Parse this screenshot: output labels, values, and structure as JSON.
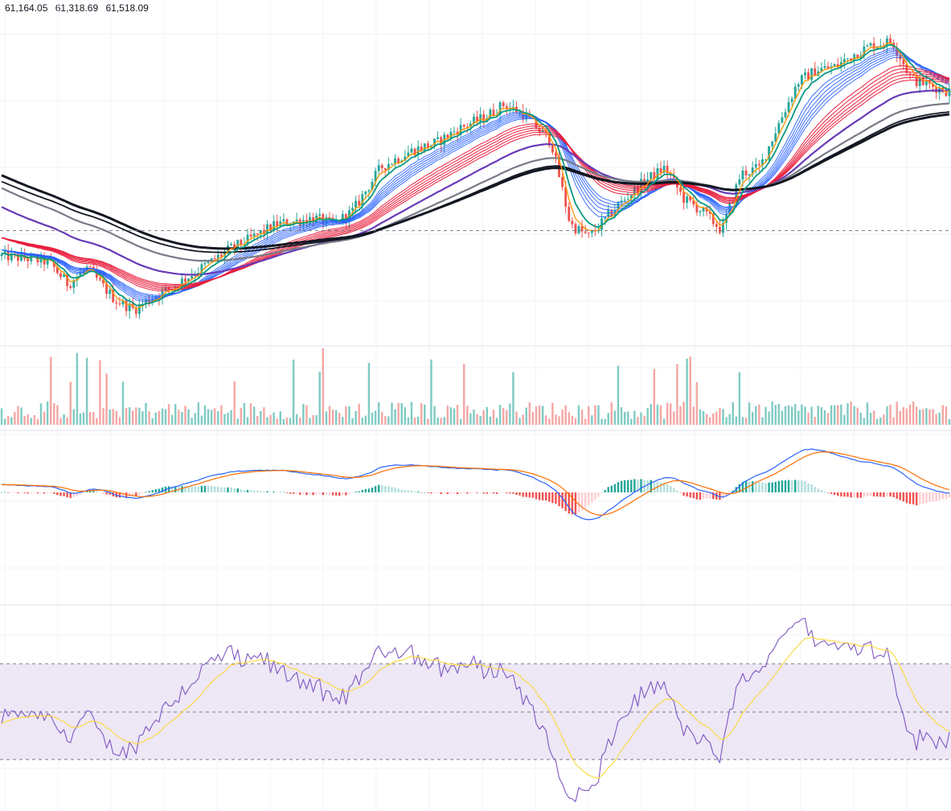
{
  "header": {
    "readout": [
      "61,164.05",
      "61,318.69",
      "61,518.09"
    ]
  },
  "colors": {
    "up": "#26a69a",
    "down": "#ef5350",
    "volume_up": "#80cbc4",
    "volume_down": "#f4a7a5",
    "ma_fast": "#2962ff",
    "ma_slow": "#e91e3c",
    "ma_200": "#673ab7",
    "ma_300": "#787b86",
    "ma_400": "#131722",
    "ema_fast1": "#ff9800",
    "ema_fast2": "#089981",
    "macd_line": "#2962ff",
    "signal_line": "#ff6d00",
    "rsi_line": "#7e57c2",
    "rsi_ma": "#fdd835",
    "rsi_band": "#ede7f6",
    "grid": "#f0f3fa"
  },
  "chart_data": [
    {
      "type": "candlestick",
      "title": "",
      "reference_line": "dashed",
      "price_path": [
        [
          0,
          0.1
        ],
        [
          0.03,
          0.05
        ],
        [
          0.05,
          0.0
        ],
        [
          0.07,
          -0.35
        ],
        [
          0.09,
          -0.1
        ],
        [
          0.12,
          -0.6
        ],
        [
          0.14,
          -0.75
        ],
        [
          0.16,
          -0.55
        ],
        [
          0.18,
          -0.4
        ],
        [
          0.21,
          -0.1
        ],
        [
          0.24,
          0.2
        ],
        [
          0.26,
          0.35
        ],
        [
          0.29,
          0.6
        ],
        [
          0.31,
          0.65
        ],
        [
          0.33,
          0.7
        ],
        [
          0.35,
          0.6
        ],
        [
          0.37,
          0.8
        ],
        [
          0.4,
          1.5
        ],
        [
          0.43,
          1.75
        ],
        [
          0.46,
          1.9
        ],
        [
          0.48,
          2.1
        ],
        [
          0.51,
          2.3
        ],
        [
          0.53,
          2.5
        ],
        [
          0.55,
          2.35
        ],
        [
          0.58,
          1.9
        ],
        [
          0.6,
          0.6
        ],
        [
          0.62,
          0.4
        ],
        [
          0.65,
          0.9
        ],
        [
          0.68,
          1.3
        ],
        [
          0.7,
          1.5
        ],
        [
          0.72,
          1.0
        ],
        [
          0.74,
          0.8
        ],
        [
          0.76,
          0.5
        ],
        [
          0.78,
          1.4
        ],
        [
          0.8,
          1.5
        ],
        [
          0.82,
          2.2
        ],
        [
          0.84,
          2.85
        ],
        [
          0.86,
          3.05
        ],
        [
          0.88,
          3.1
        ],
        [
          0.9,
          3.3
        ],
        [
          0.92,
          3.45
        ],
        [
          0.94,
          3.5
        ],
        [
          0.96,
          2.9
        ],
        [
          0.98,
          2.8
        ],
        [
          1.0,
          2.7
        ]
      ],
      "moving_average_groups": [
        "ma_fast",
        "ma_slow",
        "ma_200",
        "ma_300",
        "ma_400",
        "ema_fast1",
        "ema_fast2"
      ]
    },
    {
      "type": "bar",
      "title": "",
      "series": [
        {
          "values_hint": "volume per candle, colored by candle direction"
        }
      ]
    },
    {
      "type": "line",
      "title": "",
      "series": [
        {
          "key": "macd_line"
        },
        {
          "key": "signal_line"
        },
        {
          "key": "histogram"
        }
      ]
    },
    {
      "type": "line",
      "title": "",
      "ylim": [
        0,
        100
      ],
      "levels": [
        70,
        50,
        30
      ],
      "series": [
        {
          "key": "rsi_line"
        },
        {
          "key": "rsi_ma"
        }
      ]
    }
  ]
}
